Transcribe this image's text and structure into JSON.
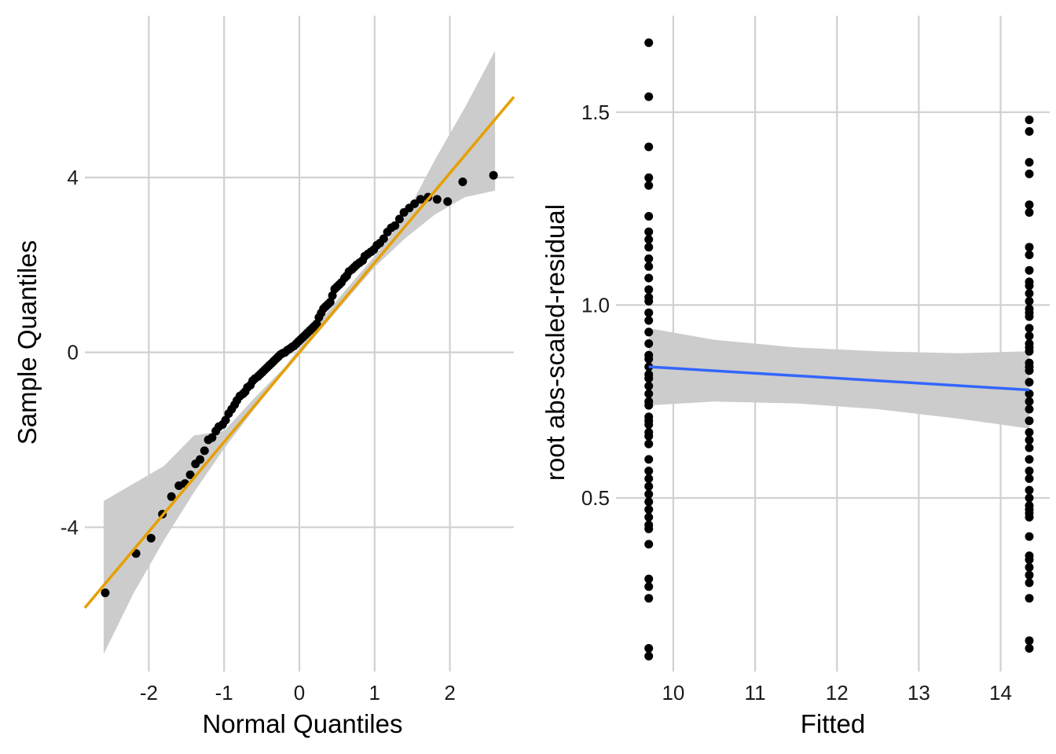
{
  "colors": {
    "points": "#000000",
    "qq_line": "#E69F00",
    "smooth_line": "#3366FF",
    "ribbon": "#cccccc",
    "grid": "#d0d0d0",
    "background": "#ffffff"
  },
  "chart_data": [
    {
      "type": "scatter",
      "title": "",
      "xlabel": "Normal Quantiles",
      "ylabel": "Sample Quantiles",
      "xlim": [
        -2.85,
        2.85
      ],
      "ylim": [
        -7.3,
        7.7
      ],
      "xticks": [
        -2,
        -1,
        0,
        1,
        2
      ],
      "xtick_labels": [
        "-2",
        "-1",
        "0",
        "1",
        "2"
      ],
      "yticks": [
        -4,
        0,
        4
      ],
      "ytick_labels": [
        "-4",
        "0",
        "4"
      ],
      "grid": true,
      "legend": "none",
      "reference_line": {
        "intercept": 0.0,
        "slope": 2.05
      },
      "confidence_band": {
        "x": [
          -2.6,
          -2.2,
          -1.8,
          -1.4,
          -1.0,
          -0.6,
          -0.2,
          0.2,
          0.6,
          1.0,
          1.4,
          1.8,
          2.2,
          2.6
        ],
        "lower": [
          -6.9,
          -5.5,
          -4.3,
          -3.2,
          -2.2,
          -1.3,
          -0.45,
          0.35,
          1.15,
          1.95,
          2.6,
          3.15,
          3.55,
          3.7
        ],
        "upper": [
          -3.4,
          -3.0,
          -2.6,
          -1.9,
          -1.8,
          -1.05,
          -0.35,
          0.55,
          1.4,
          2.2,
          3.1,
          4.4,
          5.6,
          6.9
        ]
      },
      "points": {
        "x": [
          -2.58,
          -2.17,
          -1.97,
          -1.82,
          -1.7,
          -1.6,
          -1.52,
          -1.45,
          -1.38,
          -1.32,
          -1.26,
          -1.21,
          -1.16,
          -1.11,
          -1.07,
          -1.02,
          -0.98,
          -0.94,
          -0.9,
          -0.86,
          -0.83,
          -0.79,
          -0.75,
          -0.72,
          -0.69,
          -0.65,
          -0.62,
          -0.59,
          -0.55,
          -0.52,
          -0.49,
          -0.46,
          -0.43,
          -0.4,
          -0.37,
          -0.34,
          -0.31,
          -0.28,
          -0.25,
          -0.22,
          -0.19,
          -0.16,
          -0.13,
          -0.1,
          -0.07,
          -0.04,
          -0.01,
          0.02,
          0.05,
          0.08,
          0.11,
          0.14,
          0.17,
          0.2,
          0.23,
          0.26,
          0.29,
          0.32,
          0.35,
          0.38,
          0.41,
          0.44,
          0.47,
          0.5,
          0.53,
          0.56,
          0.6,
          0.63,
          0.66,
          0.7,
          0.73,
          0.76,
          0.8,
          0.84,
          0.87,
          0.91,
          0.95,
          0.99,
          1.03,
          1.07,
          1.12,
          1.17,
          1.22,
          1.27,
          1.33,
          1.39,
          1.46,
          1.53,
          1.61,
          1.71,
          1.83,
          1.97,
          2.17,
          2.58
        ],
        "y": [
          -5.5,
          -4.6,
          -4.25,
          -3.7,
          -3.3,
          -3.05,
          -3.0,
          -2.8,
          -2.55,
          -2.45,
          -2.25,
          -2.0,
          -1.95,
          -1.8,
          -1.7,
          -1.65,
          -1.55,
          -1.4,
          -1.3,
          -1.2,
          -1.1,
          -1.0,
          -0.95,
          -0.9,
          -0.8,
          -0.75,
          -0.65,
          -0.6,
          -0.55,
          -0.5,
          -0.45,
          -0.4,
          -0.35,
          -0.3,
          -0.25,
          -0.2,
          -0.15,
          -0.1,
          -0.05,
          -0.02,
          0.0,
          0.05,
          0.08,
          0.12,
          0.15,
          0.2,
          0.25,
          0.3,
          0.35,
          0.4,
          0.45,
          0.5,
          0.55,
          0.6,
          0.65,
          0.8,
          0.9,
          1.0,
          1.05,
          1.1,
          1.15,
          1.3,
          1.45,
          1.5,
          1.55,
          1.6,
          1.7,
          1.75,
          1.85,
          1.9,
          1.95,
          2.0,
          2.05,
          2.1,
          2.2,
          2.25,
          2.3,
          2.35,
          2.45,
          2.5,
          2.6,
          2.75,
          2.85,
          2.9,
          3.05,
          3.2,
          3.3,
          3.4,
          3.5,
          3.55,
          3.5,
          3.45,
          3.9,
          4.05
        ]
      }
    },
    {
      "type": "scatter",
      "title": "",
      "xlabel": "Fitted",
      "ylabel": "root abs-scaled-residual",
      "xlim": [
        9.3,
        14.6
      ],
      "ylim": [
        0.05,
        1.75
      ],
      "xticks": [
        10,
        11,
        12,
        13,
        14
      ],
      "xtick_labels": [
        "10",
        "11",
        "12",
        "13",
        "14"
      ],
      "yticks": [
        0.5,
        1.0,
        1.5
      ],
      "ytick_labels": [
        "0.5",
        "1.0",
        "1.5"
      ],
      "grid": true,
      "legend": "none",
      "smooth_line": {
        "x": [
          9.7,
          14.35
        ],
        "y": [
          0.84,
          0.78
        ]
      },
      "confidence_band": {
        "x": [
          9.7,
          10.5,
          11.5,
          12.5,
          13.5,
          14.35
        ],
        "lower": [
          0.74,
          0.75,
          0.745,
          0.73,
          0.705,
          0.68
        ],
        "upper": [
          0.94,
          0.91,
          0.89,
          0.88,
          0.875,
          0.88
        ]
      },
      "points": {
        "x": [
          9.7,
          9.7,
          9.7,
          9.7,
          9.7,
          9.7,
          9.7,
          9.7,
          9.7,
          9.7,
          9.7,
          9.7,
          9.7,
          9.7,
          9.7,
          9.7,
          9.7,
          9.7,
          9.7,
          9.7,
          9.7,
          9.7,
          9.7,
          9.7,
          9.7,
          9.7,
          9.7,
          9.7,
          9.7,
          9.7,
          9.7,
          9.7,
          9.7,
          9.7,
          9.7,
          9.7,
          9.7,
          9.7,
          9.7,
          9.7,
          9.7,
          9.7,
          9.7,
          9.7,
          9.7,
          9.7,
          9.7,
          9.7,
          9.7,
          9.7,
          14.35,
          14.35,
          14.35,
          14.35,
          14.35,
          14.35,
          14.35,
          14.35,
          14.35,
          14.35,
          14.35,
          14.35,
          14.35,
          14.35,
          14.35,
          14.35,
          14.35,
          14.35,
          14.35,
          14.35,
          14.35,
          14.35,
          14.35,
          14.35,
          14.35,
          14.35,
          14.35,
          14.35,
          14.35,
          14.35,
          14.35,
          14.35,
          14.35,
          14.35,
          14.35,
          14.35,
          14.35,
          14.35,
          14.35,
          14.35,
          14.35,
          14.35,
          14.35,
          14.35,
          14.35,
          14.35,
          14.35,
          14.35,
          14.35,
          14.35
        ],
        "y": [
          1.68,
          1.54,
          1.41,
          1.33,
          1.31,
          1.23,
          1.19,
          1.17,
          1.15,
          1.12,
          1.1,
          1.07,
          1.04,
          1.01,
          0.98,
          0.96,
          0.9,
          0.87,
          0.86,
          0.84,
          0.82,
          0.79,
          0.77,
          0.75,
          0.74,
          0.71,
          0.69,
          0.67,
          0.66,
          0.64,
          0.6,
          0.57,
          0.55,
          0.53,
          0.51,
          0.49,
          0.47,
          0.45,
          0.43,
          0.42,
          0.38,
          0.29,
          0.27,
          0.24,
          0.11,
          0.09,
          1.02,
          0.93,
          0.81,
          0.7,
          1.48,
          1.45,
          1.37,
          1.34,
          1.26,
          1.24,
          1.15,
          1.13,
          1.09,
          1.06,
          1.03,
          1.01,
          0.99,
          0.97,
          0.94,
          0.92,
          0.9,
          0.88,
          0.85,
          0.8,
          0.77,
          0.75,
          0.73,
          0.7,
          0.65,
          0.63,
          0.6,
          0.57,
          0.52,
          0.5,
          0.48,
          0.46,
          0.45,
          0.4,
          0.35,
          0.34,
          0.3,
          0.28,
          0.24,
          0.13,
          0.11,
          1.05,
          0.98,
          0.84,
          0.83,
          0.67,
          0.55,
          0.47,
          0.32,
          0.89
        ]
      }
    }
  ]
}
